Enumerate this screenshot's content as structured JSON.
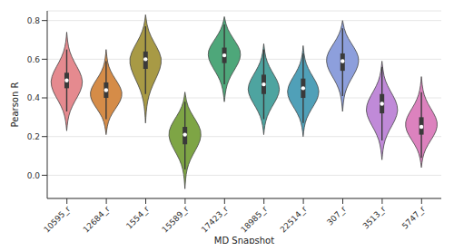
{
  "chart_data": {
    "type": "violin",
    "x_label": "MD Snapshot",
    "y_label": "Pearson R",
    "categories": [
      "10595_r",
      "12684_r",
      "1554_r",
      "15589_r",
      "17423_r",
      "18985_r",
      "22514_r",
      "307_r",
      "3513_r",
      "5747_r"
    ],
    "colors": [
      "#e58a8f",
      "#d58c48",
      "#a89a45",
      "#7ea545",
      "#4ea77a",
      "#4ea4a0",
      "#50a0b8",
      "#8d9fdc",
      "#c08ad8",
      "#dc82be"
    ],
    "min": [
      0.23,
      0.21,
      0.27,
      -0.07,
      0.38,
      0.21,
      0.2,
      0.33,
      0.08,
      0.04
    ],
    "max": [
      0.74,
      0.65,
      0.83,
      0.43,
      0.82,
      0.68,
      0.67,
      0.8,
      0.59,
      0.51
    ],
    "q1": [
      0.45,
      0.4,
      0.55,
      0.16,
      0.58,
      0.42,
      0.4,
      0.54,
      0.32,
      0.21
    ],
    "median": [
      0.49,
      0.44,
      0.6,
      0.21,
      0.62,
      0.47,
      0.45,
      0.59,
      0.37,
      0.25
    ],
    "q3": [
      0.53,
      0.48,
      0.64,
      0.25,
      0.66,
      0.52,
      0.5,
      0.63,
      0.42,
      0.3
    ],
    "whisker_low": [
      0.33,
      0.29,
      0.42,
      0.03,
      0.47,
      0.29,
      0.27,
      0.41,
      0.18,
      0.09
    ],
    "whisker_high": [
      0.65,
      0.59,
      0.77,
      0.38,
      0.78,
      0.65,
      0.63,
      0.76,
      0.56,
      0.43
    ],
    "density": [
      [
        0,
        0.06,
        0.2,
        0.5,
        0.85,
        1,
        0.8,
        0.45,
        0.18,
        0.05,
        0
      ],
      [
        0,
        0.07,
        0.22,
        0.55,
        0.9,
        1,
        0.75,
        0.4,
        0.15,
        0.05,
        0
      ],
      [
        0,
        0.04,
        0.12,
        0.3,
        0.6,
        0.9,
        1,
        0.7,
        0.32,
        0.08,
        0
      ],
      [
        0,
        0.04,
        0.12,
        0.32,
        0.65,
        0.95,
        1,
        0.7,
        0.32,
        0.08,
        0
      ],
      [
        0,
        0.06,
        0.16,
        0.38,
        0.7,
        0.97,
        1,
        0.7,
        0.35,
        0.1,
        0
      ],
      [
        0,
        0.06,
        0.2,
        0.48,
        0.82,
        1,
        0.82,
        0.48,
        0.2,
        0.06,
        0
      ],
      [
        0,
        0.06,
        0.2,
        0.5,
        0.85,
        1,
        0.8,
        0.45,
        0.18,
        0.05,
        0
      ],
      [
        0,
        0.05,
        0.14,
        0.35,
        0.68,
        0.96,
        1,
        0.72,
        0.35,
        0.1,
        0
      ],
      [
        0,
        0.06,
        0.18,
        0.45,
        0.8,
        1,
        0.85,
        0.5,
        0.2,
        0.06,
        0
      ],
      [
        0,
        0.07,
        0.24,
        0.58,
        0.92,
        1,
        0.75,
        0.4,
        0.16,
        0.05,
        0
      ]
    ],
    "ylim": [
      -0.12,
      0.85
    ],
    "yticks": [
      {
        "value": 0,
        "label": "0.0"
      },
      {
        "value": 0.2,
        "label": "0.2"
      },
      {
        "value": 0.4,
        "label": "0.4"
      },
      {
        "value": 0.6,
        "label": "0.6"
      },
      {
        "value": 0.8,
        "label": "0.8"
      }
    ],
    "grid": true
  }
}
